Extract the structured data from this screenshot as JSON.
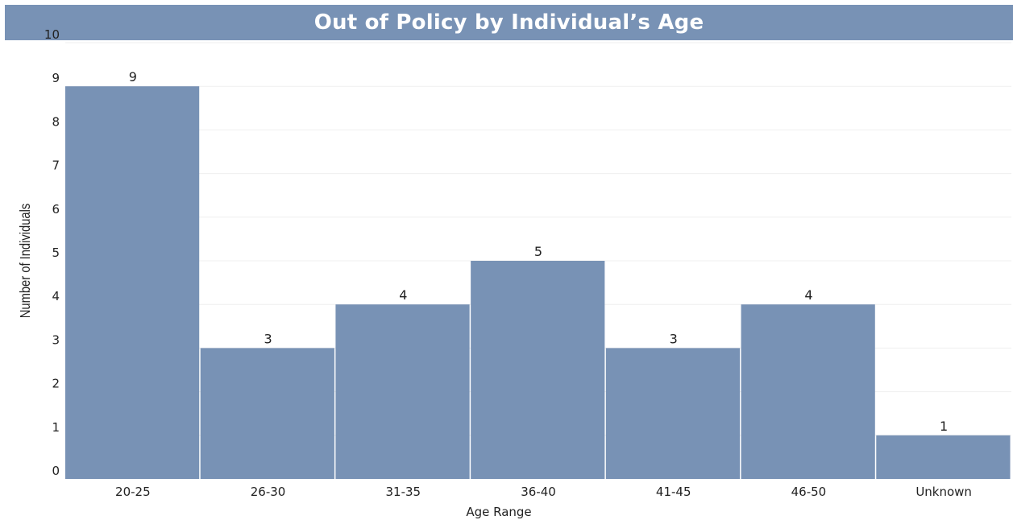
{
  "chart_data": {
    "type": "bar",
    "title": "Out of Policy by Individual’s Age",
    "xlabel": "Age Range",
    "ylabel": "Number of Individuals",
    "categories": [
      "20-25",
      "26-30",
      "31-35",
      "36-40",
      "41-45",
      "46-50",
      "Unknown"
    ],
    "values": [
      9,
      3,
      4,
      5,
      3,
      4,
      1
    ],
    "ylim": [
      0,
      10
    ],
    "yticks": [
      0,
      1,
      2,
      3,
      4,
      5,
      6,
      7,
      8,
      9,
      10
    ],
    "grid": true,
    "bar_color": "#7892b5",
    "title_bar_color": "#7892b5"
  }
}
